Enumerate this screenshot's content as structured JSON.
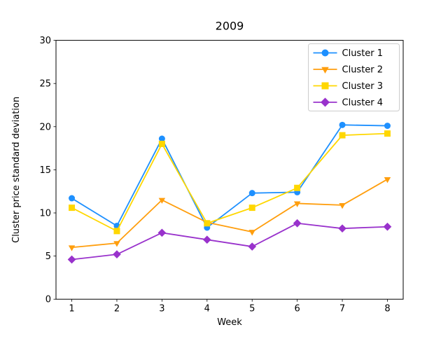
{
  "figure": {
    "background": "#ffffff",
    "spine_color": "#000000"
  },
  "chart_data": {
    "type": "line",
    "title": "2009",
    "xlabel": "Week",
    "ylabel": "Cluster price standard deviation",
    "x": [
      1,
      2,
      3,
      4,
      5,
      6,
      7,
      8
    ],
    "x_ticks": [
      "1",
      "2",
      "3",
      "4",
      "5",
      "6",
      "7",
      "8"
    ],
    "y_ticks": [
      "0",
      "5",
      "10",
      "15",
      "20",
      "25",
      "30"
    ],
    "xlim": [
      0.65,
      8.35
    ],
    "ylim": [
      0,
      30
    ],
    "grid": false,
    "legend_position": "upper right",
    "series": [
      {
        "name": "Cluster 1",
        "color": "#1E90FF",
        "marker": "circle",
        "values": [
          11.7,
          8.5,
          18.6,
          8.3,
          12.3,
          12.4,
          20.2,
          20.1
        ]
      },
      {
        "name": "Cluster 2",
        "color": "#FF9E0D",
        "marker": "triangle-down",
        "values": [
          6.0,
          6.5,
          11.5,
          8.9,
          7.8,
          11.1,
          10.9,
          13.9
        ]
      },
      {
        "name": "Cluster 3",
        "color": "#FFD700",
        "marker": "square",
        "values": [
          10.6,
          7.9,
          18.0,
          8.8,
          10.6,
          12.9,
          19.0,
          19.2
        ]
      },
      {
        "name": "Cluster 4",
        "color": "#9932CC",
        "marker": "diamond",
        "values": [
          4.6,
          5.2,
          7.7,
          6.9,
          6.1,
          8.8,
          8.2,
          8.4
        ]
      }
    ]
  }
}
